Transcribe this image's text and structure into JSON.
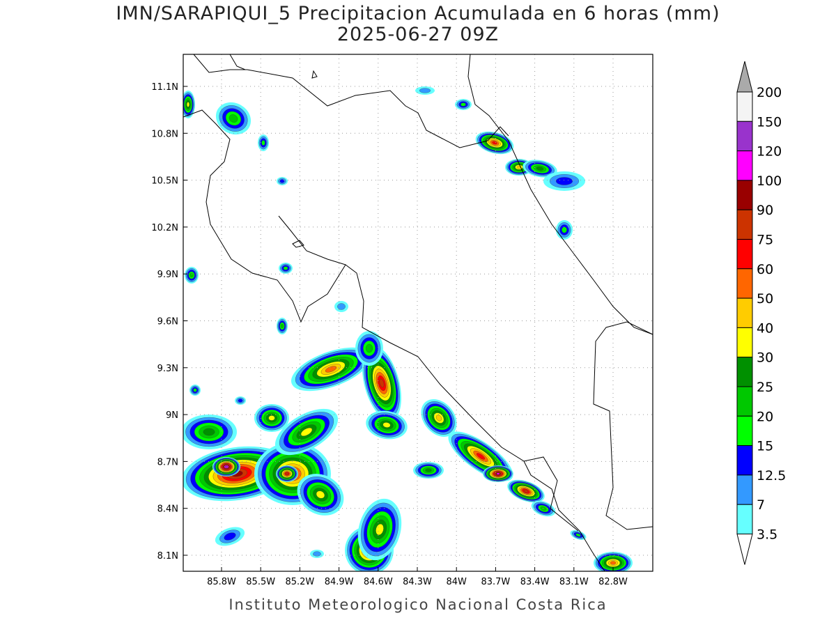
{
  "title": {
    "line1": "IMN/SARAPIQUI_5 Precipitacion Acumulada en 6 horas (mm)",
    "line2": "2025-06-27 09Z"
  },
  "footer": "Instituto Meteorologico Nacional Costa Rica",
  "axes": {
    "lat_ticks": [
      "11.1N",
      "10.8N",
      "10.5N",
      "10.2N",
      "9.9N",
      "9.6N",
      "9.3N",
      "9N",
      "8.7N",
      "8.4N",
      "8.1N"
    ],
    "lon_ticks": [
      "85.8W",
      "85.5W",
      "85.2W",
      "84.9W",
      "84.6W",
      "84.3W",
      "84W",
      "83.7W",
      "83.4W",
      "83.1W",
      "82.8W"
    ]
  },
  "colorbar": {
    "labels": [
      "200",
      "150",
      "120",
      "100",
      "90",
      "75",
      "60",
      "50",
      "40",
      "30",
      "25",
      "20",
      "15",
      "12.5",
      "7",
      "3.5"
    ],
    "over_color": "#aaaaaa",
    "under_color": "#ffffff",
    "colors": [
      "#f4f4f4",
      "#9933cc",
      "#ff00ff",
      "#990000",
      "#cc3300",
      "#ff0000",
      "#ff6600",
      "#ffcc00",
      "#ffff00",
      "#009000",
      "#00c800",
      "#00ff00",
      "#0000ff",
      "#3399ff",
      "#66ffff"
    ]
  }
}
